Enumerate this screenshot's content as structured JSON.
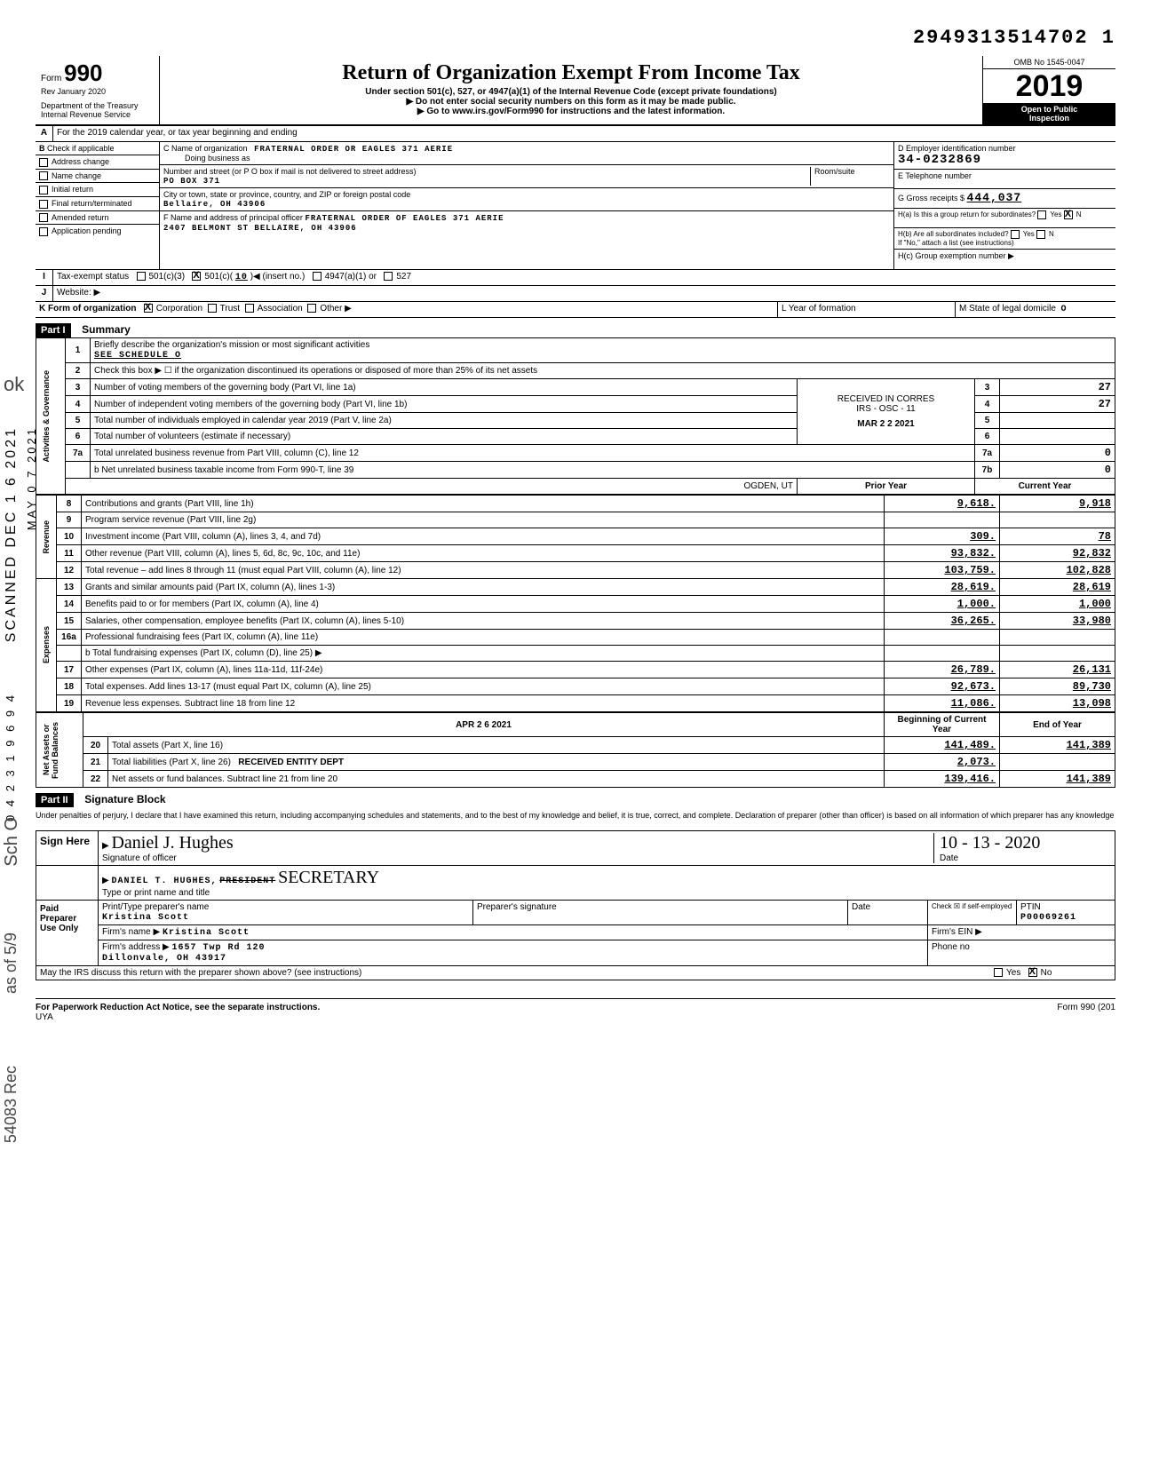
{
  "doc_number": "2949313514702 1",
  "form": {
    "number": "990",
    "rev": "Rev January 2020",
    "dept": "Department of the Treasury",
    "irs": "Internal Revenue Service",
    "title": "Return of Organization Exempt From Income Tax",
    "sub1": "Under section 501(c), 527, or 4947(a)(1) of the Internal Revenue Code (except private foundations)",
    "sub2": "▶ Do not enter social security numbers on this form as it may be made public.",
    "sub3": "▶ Go to www.irs.gov/Form990 for instructions and the latest information.",
    "omb": "OMB No 1545-0047",
    "year": "2019",
    "pub1": "Open to Public",
    "pub2": "Inspection"
  },
  "lineA": "For the 2019 calendar year, or tax year beginning                                and ending",
  "checks": {
    "addr_change": "Address change",
    "name_change": "Name change",
    "initial": "Initial return",
    "final": "Final return/terminated",
    "amended": "Amended return",
    "app_pending": "Application pending"
  },
  "C": {
    "name_lbl": "C Name of organization",
    "name": "FRATERNAL ORDER OR EAGLES 371 AERIE",
    "dba_lbl": "Doing business as",
    "street_lbl": "Number and street (or P O  box if mail is not delivered to street address)",
    "street": "PO BOX 371",
    "room_lbl": "Room/suite",
    "city_lbl": "City or town, state or province, country, and ZIP or foreign postal code",
    "city": "Bellaire, OH 43906",
    "officer_lbl": "F Name and address of principal officer",
    "officer_name": "FRATERNAL ORDER OF EAGLES 371 AERIE",
    "officer_addr": "2407 BELMONT ST BELLAIRE, OH 43906"
  },
  "D": {
    "lbl": "D Employer identification number",
    "val": "34-0232869"
  },
  "E": {
    "lbl": "E Telephone number"
  },
  "G": {
    "lbl": "G Gross receipts $",
    "val": "444,037"
  },
  "H": {
    "a": "H(a) Is this a group return for subordinates?",
    "b": "H(b) Are all subordinates included?",
    "attach": "If \"No,\" attach a list (see instructions)",
    "c": "H(c) Group exemption number ▶"
  },
  "I": {
    "lbl": "Tax-exempt status",
    "opt1": "501(c)(3)",
    "opt2": "501(c)(",
    "num": "10",
    "opt2b": ")◀ (insert no.)",
    "opt3": "4947(a)(1) or",
    "opt4": "527"
  },
  "J": "Website: ▶",
  "K": {
    "lbl": "K Form of organization",
    "corp": "Corporation",
    "trust": "Trust",
    "assoc": "Association",
    "other": "Other ▶"
  },
  "L": "L  Year of formation",
  "M": {
    "lbl": "M  State of legal domicile",
    "val": "O"
  },
  "part1": {
    "hdr": "Part I",
    "title": "Summary",
    "l1": "Briefly describe the organization's mission or most significant activities",
    "l1v": "SEE SCHEDULE O",
    "l2": "Check this box ▶ ☐ if the organization discontinued its operations or disposed of more than 25% of its net assets",
    "l3": "Number of voting members of the governing body (Part VI, line 1a)",
    "l4": "Number of independent voting members of the governing body (Part VI, line 1b)",
    "l5": "Total number of individuals employed in calendar year 2019 (Part V, line 2a)",
    "l6": "Total number of volunteers (estimate if necessary)",
    "l7a": "Total unrelated business revenue from Part VIII, column (C), line 12",
    "l7b": "Net unrelated business taxable income from Form 990-T, line 39",
    "stamp_rec": "RECEIVED IN CORRES",
    "stamp_irs": "IRS - OSC - 11",
    "stamp_date": "MAR 2 2 2021",
    "stamp_ogden": "OGDEN, UT",
    "v3": "27",
    "v4": "27",
    "v7a": "0",
    "v7b": "0",
    "prior_hdr": "Prior Year",
    "curr_hdr": "Current Year",
    "rows": [
      {
        "n": "8",
        "t": "Contributions and grants (Part VIII, line 1h)",
        "p": "9,618.",
        "c": "9,918"
      },
      {
        "n": "9",
        "t": "Program service revenue (Part VIII, line 2g)",
        "p": "",
        "c": ""
      },
      {
        "n": "10",
        "t": "Investment income (Part VIII, column (A), lines 3, 4, and 7d)",
        "p": "309.",
        "c": "78"
      },
      {
        "n": "11",
        "t": "Other revenue (Part VIII, column (A), lines 5, 6d, 8c, 9c, 10c, and 11e)",
        "p": "93,832.",
        "c": "92,832"
      },
      {
        "n": "12",
        "t": "Total revenue – add lines 8 through 11 (must equal Part VIII, column (A), line 12)",
        "p": "103,759.",
        "c": "102,828"
      },
      {
        "n": "13",
        "t": "Grants and similar amounts paid (Part IX, column (A), lines 1-3)",
        "p": "28,619.",
        "c": "28,619"
      },
      {
        "n": "14",
        "t": "Benefits paid to or for members (Part IX, column (A), line 4)",
        "p": "1,000.",
        "c": "1,000"
      },
      {
        "n": "15",
        "t": "Salaries, other compensation, employee benefits (Part IX, column (A), lines 5-10)",
        "p": "36,265.",
        "c": "33,980"
      },
      {
        "n": "16a",
        "t": "Professional fundraising fees (Part IX, column (A), line 11e)",
        "p": "",
        "c": ""
      },
      {
        "n": "",
        "t": "b Total fundraising expenses (Part IX, column (D), line 25) ▶",
        "p": "",
        "c": ""
      },
      {
        "n": "17",
        "t": "Other expenses (Part IX, column (A), lines 11a-11d, 11f-24e)",
        "p": "26,789.",
        "c": "26,131"
      },
      {
        "n": "18",
        "t": "Total expenses. Add lines 13-17 (must equal Part IX, column (A), line 25)",
        "p": "92,673.",
        "c": "89,730"
      },
      {
        "n": "19",
        "t": "Revenue less expenses. Subtract line 18 from line 12",
        "p": "11,086.",
        "c": "13,098"
      }
    ],
    "na_prior": "Beginning of Current Year",
    "na_curr": "End of Year",
    "na_rows": [
      {
        "n": "20",
        "t": "Total assets (Part X, line 16)",
        "p": "141,489.",
        "c": "141,389"
      },
      {
        "n": "21",
        "t": "Total liabilities (Part X, line 26)",
        "p": "2,073.",
        "c": ""
      },
      {
        "n": "22",
        "t": "Net assets or fund balances. Subtract line 21 from line 20",
        "p": "139,416.",
        "c": "141,389"
      }
    ],
    "stamp_apr": "APR 2 6 2021",
    "stamp_ent": "RECEIVED ENTITY DEPT",
    "side_gov": "Activities & Governance",
    "side_rev": "Revenue",
    "side_exp": "Expenses",
    "side_na": "Net Assets or Fund Balances"
  },
  "part2": {
    "hdr": "Part II",
    "title": "Signature Block",
    "decl": "Under penalties of perjury, I declare that I have examined this return, including accompanying schedules and statements, and to the best of my knowledge and belief, it is true, correct, and complete. Declaration of preparer (other than officer) is based on all information of which preparer has any knowledge",
    "sign": "Sign Here",
    "sig_hand": "Daniel J. Hughes",
    "sig_lbl": "Signature of officer",
    "date_hand": "10 - 13 - 2020",
    "date_lbl": "Date",
    "name_print": "DANIEL T. HUGHES,",
    "title_strike": "PRESIDENT",
    "title_hand": "SECRETARY",
    "name_lbl": "Type or print name and title",
    "paid": "Paid Preparer Use Only",
    "prep_name_lbl": "Print/Type preparer's name",
    "prep_name": "Kristina Scott",
    "prep_sig_lbl": "Preparer's signature",
    "prep_date_lbl": "Date",
    "check_lbl": "Check ☒ if self-employed",
    "ptin_lbl": "PTIN",
    "ptin": "P00069261",
    "firm_lbl": "Firm's name ▶",
    "firm": "Kristina Scott",
    "ein_lbl": "Firm's EIN ▶",
    "addr_lbl": "Firm's address ▶",
    "addr1": "1657 Twp Rd 120",
    "addr2": "Dillonvale, OH 43917",
    "phone_lbl": "Phone no",
    "discuss": "May the IRS discuss this return with the preparer shown above? (see instructions)"
  },
  "footer": {
    "l": "For Paperwork Reduction Act Notice, see the separate instructions.",
    "c": "UYA",
    "r": "Form 990 (201"
  },
  "margin": {
    "scanned": "SCANNED DEC 1 6 2021",
    "date2": "MAY 0 7 2021",
    "seq": "0 4 2 3 1 9 6 9 4",
    "hand1": "ok",
    "hand2": "Sch O",
    "hand3": "as of 5/9",
    "hand4": "54083 Rec"
  }
}
